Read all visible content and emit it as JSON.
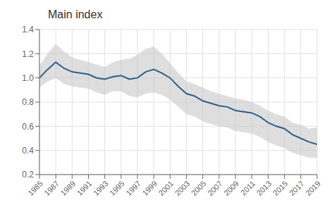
{
  "chart_data": {
    "type": "line",
    "title": "Main index",
    "x": [
      1985,
      1986,
      1987,
      1988,
      1989,
      1990,
      1991,
      1992,
      1993,
      1994,
      1995,
      1996,
      1997,
      1998,
      1999,
      2000,
      2001,
      2002,
      2003,
      2004,
      2005,
      2006,
      2007,
      2008,
      2009,
      2010,
      2011,
      2012,
      2013,
      2014,
      2015,
      2016,
      2017,
      2018,
      2019
    ],
    "values": [
      1.0,
      1.07,
      1.13,
      1.08,
      1.05,
      1.04,
      1.03,
      1.0,
      0.99,
      1.01,
      1.02,
      0.99,
      1.0,
      1.05,
      1.07,
      1.04,
      1.0,
      0.93,
      0.87,
      0.85,
      0.81,
      0.79,
      0.77,
      0.76,
      0.73,
      0.72,
      0.71,
      0.68,
      0.63,
      0.6,
      0.58,
      0.53,
      0.5,
      0.47,
      0.45
    ],
    "color": "#2e5f8a",
    "band": {
      "upper": [
        1.1,
        1.2,
        1.28,
        1.22,
        1.17,
        1.15,
        1.13,
        1.11,
        1.09,
        1.13,
        1.15,
        1.16,
        1.19,
        1.24,
        1.26,
        1.2,
        1.12,
        1.04,
        0.97,
        0.95,
        0.92,
        0.89,
        0.87,
        0.85,
        0.83,
        0.82,
        0.8,
        0.77,
        0.73,
        0.7,
        0.68,
        0.63,
        0.61,
        0.58,
        0.59
      ],
      "lower": [
        0.92,
        0.97,
        1.0,
        0.95,
        0.93,
        0.92,
        0.91,
        0.88,
        0.86,
        0.89,
        0.89,
        0.85,
        0.84,
        0.87,
        0.88,
        0.86,
        0.82,
        0.76,
        0.7,
        0.68,
        0.64,
        0.62,
        0.6,
        0.59,
        0.56,
        0.55,
        0.54,
        0.51,
        0.47,
        0.44,
        0.42,
        0.38,
        0.36,
        0.34,
        0.34
      ],
      "color": "#c8c8c8"
    },
    "xlim": [
      1985,
      2019
    ],
    "xticks": [
      1985,
      1987,
      1989,
      1991,
      1993,
      1995,
      1997,
      1999,
      2001,
      2003,
      2005,
      2007,
      2009,
      2011,
      2013,
      2015,
      2017,
      2019
    ],
    "ylim": [
      0.2,
      1.4
    ],
    "yticks": [
      0.2,
      0.4,
      0.6,
      0.8,
      {
        "value": 1,
        "label": "1.0"
      },
      1.2,
      1.4
    ],
    "grid": true
  }
}
